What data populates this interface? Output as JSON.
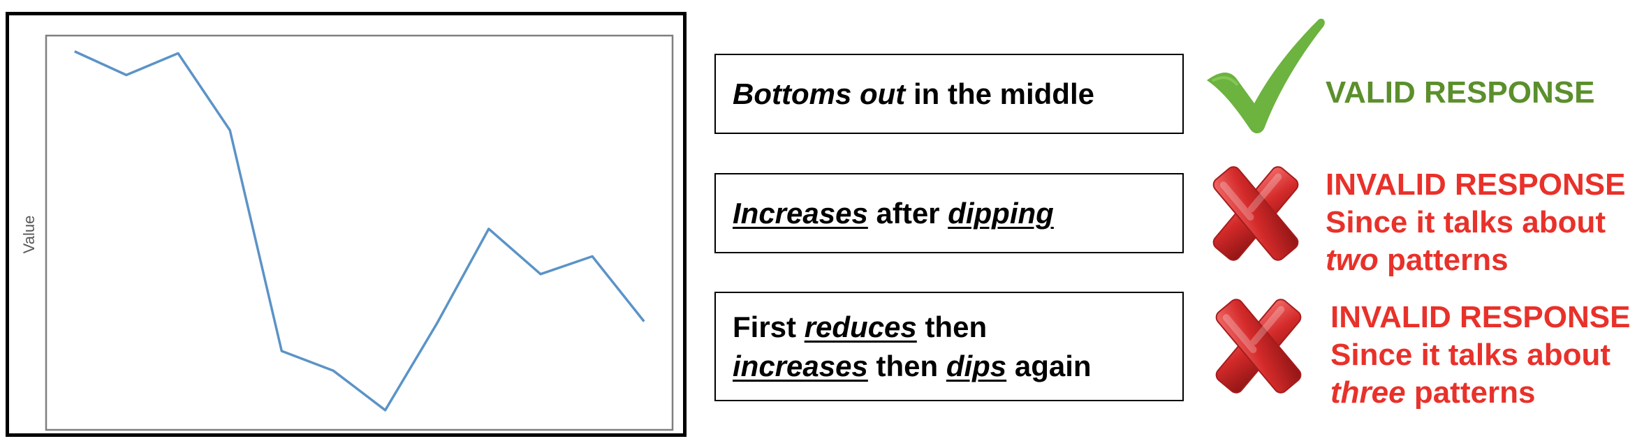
{
  "chart_data": {
    "type": "line",
    "ylabel": "Value",
    "xlabel": "",
    "x": [
      1,
      2,
      3,
      4,
      5,
      6,
      7,
      8,
      9,
      10,
      11,
      12
    ],
    "values": [
      0.96,
      0.9,
      0.955,
      0.76,
      0.2,
      0.15,
      0.05,
      0.27,
      0.51,
      0.395,
      0.44,
      0.275
    ],
    "xlim": [
      0.45,
      12.55
    ],
    "ylim": [
      0,
      1
    ],
    "grid": false,
    "line_color": "#5b93c7"
  },
  "responses": [
    {
      "parts": [
        {
          "text": "Bottoms out",
          "style": "italic"
        },
        {
          "text": " in the middle",
          "style": "plain"
        }
      ],
      "verdict": {
        "kind": "valid",
        "title": "VALID RESPONSE"
      }
    },
    {
      "parts": [
        {
          "text": "Increases",
          "style": "italic-underline"
        },
        {
          "text": " after ",
          "style": "plain"
        },
        {
          "text": "dipping",
          "style": "italic-underline"
        }
      ],
      "verdict": {
        "kind": "invalid",
        "title": "INVALID RESPONSE",
        "line2": "Since it talks about",
        "emph": "two",
        "line3_rest": " patterns"
      }
    },
    {
      "lines": [
        [
          {
            "text": "First ",
            "style": "plain"
          },
          {
            "text": "reduces",
            "style": "italic-underline"
          },
          {
            "text": " then",
            "style": "plain"
          }
        ],
        [
          {
            "text": "increases",
            "style": "italic-underline"
          },
          {
            "text": " then ",
            "style": "plain"
          },
          {
            "text": "dips",
            "style": "italic-underline"
          },
          {
            "text": " again",
            "style": "plain"
          }
        ]
      ],
      "verdict": {
        "kind": "invalid",
        "title": "INVALID RESPONSE",
        "line2": "Since it talks about",
        "emph": "three",
        "line3_rest": " patterns"
      }
    }
  ],
  "colors": {
    "valid": "#5b8f2c",
    "invalid": "#e8312a",
    "check": "#6cb33f",
    "cross": "#d42a2a"
  },
  "icons": {
    "valid": "check-mark-icon",
    "invalid": "cross-mark-icon"
  }
}
